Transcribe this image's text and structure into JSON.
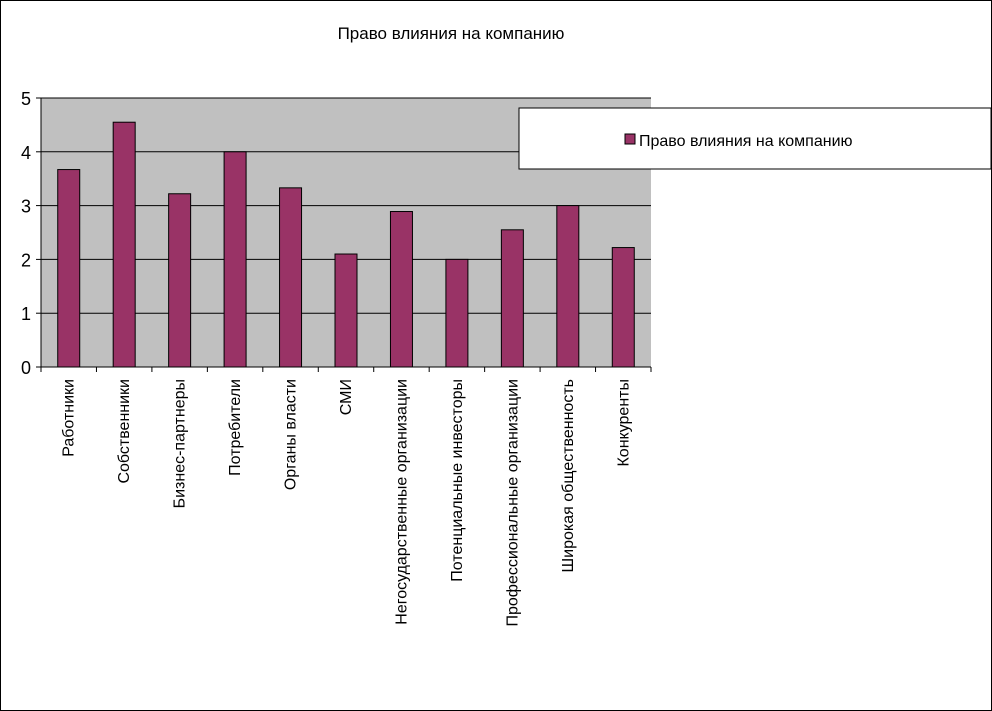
{
  "chart_data": {
    "type": "bar",
    "title": "Право влияния  на компанию",
    "xlabel": "",
    "ylabel": "",
    "categories": [
      "Работники",
      "Собственники",
      "Бизнес-партнеры",
      "Потребители",
      "Органы власти",
      "СМИ",
      "Негосударственные организации",
      "Потенциальные инвесторы",
      "Профессиональные организации",
      "Широкая общественность",
      "Конкуренты"
    ],
    "series": [
      {
        "name": "Право влияния  на компанию",
        "values": [
          3.67,
          4.55,
          3.22,
          4.0,
          3.33,
          2.1,
          2.89,
          2.0,
          2.55,
          3.0,
          2.22
        ],
        "color": "#993366"
      }
    ],
    "ylim": [
      0,
      5
    ],
    "yticks": [
      "0",
      "1",
      "2",
      "3",
      "4",
      "5"
    ],
    "grid": true,
    "plot_background": "#c0c0c0",
    "legend_position": "right"
  }
}
